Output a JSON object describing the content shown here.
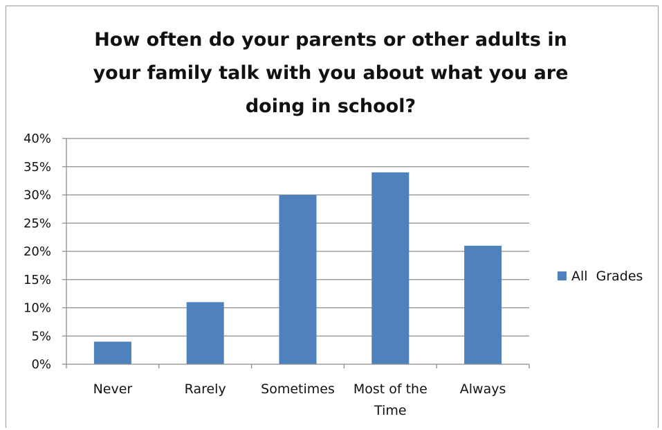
{
  "chart_data": {
    "type": "bar",
    "title_lines": [
      "How often do your parents or other adults in",
      "your family talk with you about what you are",
      "doing in school?"
    ],
    "categories": [
      [
        "Never"
      ],
      [
        "Rarely"
      ],
      [
        "Sometimes"
      ],
      [
        "Most of the",
        "Time"
      ],
      [
        "Always"
      ]
    ],
    "series": [
      {
        "name": "All  Grades",
        "values": [
          4,
          11,
          30,
          34,
          21
        ],
        "color": "#4f81bd"
      }
    ],
    "ylim": [
      0,
      40
    ],
    "yticks": [
      0,
      5,
      10,
      15,
      20,
      25,
      30,
      35,
      40
    ],
    "ytick_labels": [
      "0%",
      "5%",
      "10%",
      "15%",
      "20%",
      "25%",
      "30%",
      "35%",
      "40%"
    ],
    "grid": true,
    "legend_position": "right"
  }
}
